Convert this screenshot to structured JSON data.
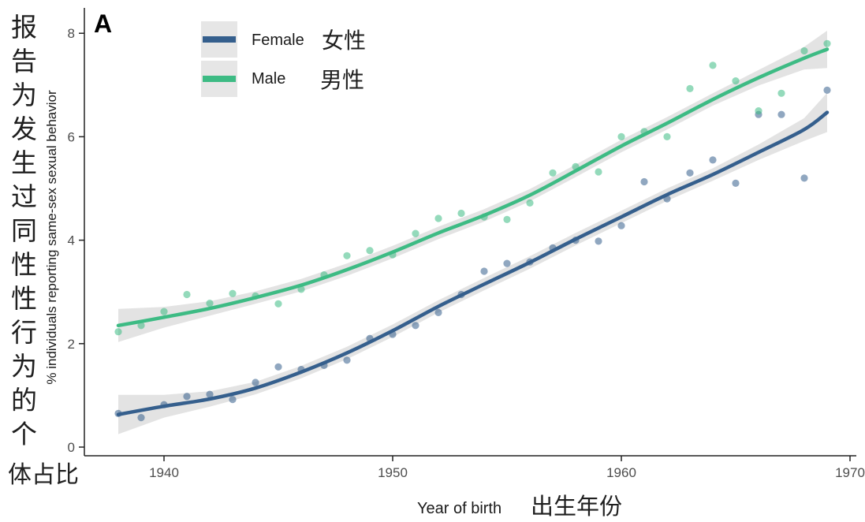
{
  "panel_label": "A",
  "side_label_cn": [
    "报",
    "告",
    "为",
    "发",
    "生",
    "过",
    "同",
    "性",
    "性",
    "行",
    "为",
    "的",
    "个",
    "体占比"
  ],
  "chart_data": {
    "type": "scatter",
    "xlabel": "Year of birth",
    "xlabel_cn": "出生年份",
    "ylabel": "% individuals reporting same-sex sexual behavior",
    "xlim": [
      1937.5,
      1970
    ],
    "ylim": [
      -0.1,
      8.4
    ],
    "x_ticks": [
      1940,
      1950,
      1960,
      1970
    ],
    "y_ticks": [
      0,
      2,
      4,
      6,
      8
    ],
    "grid": false,
    "legend_position": "top-left",
    "series": [
      {
        "name": "Female",
        "name_cn": "女性",
        "color": "#355f8d",
        "points": [
          [
            1938,
            0.65
          ],
          [
            1939,
            0.57
          ],
          [
            1940,
            0.82
          ],
          [
            1941,
            0.98
          ],
          [
            1942,
            1.02
          ],
          [
            1943,
            0.92
          ],
          [
            1944,
            1.25
          ],
          [
            1945,
            1.55
          ],
          [
            1946,
            1.5
          ],
          [
            1947,
            1.58
          ],
          [
            1948,
            1.68
          ],
          [
            1949,
            2.1
          ],
          [
            1950,
            2.18
          ],
          [
            1951,
            2.35
          ],
          [
            1952,
            2.6
          ],
          [
            1953,
            2.95
          ],
          [
            1954,
            3.4
          ],
          [
            1955,
            3.55
          ],
          [
            1956,
            3.58
          ],
          [
            1957,
            3.85
          ],
          [
            1958,
            4.0
          ],
          [
            1959,
            3.98
          ],
          [
            1960,
            4.28
          ],
          [
            1961,
            5.13
          ],
          [
            1962,
            4.8
          ],
          [
            1963,
            5.3
          ],
          [
            1964,
            5.55
          ],
          [
            1965,
            5.1
          ],
          [
            1966,
            6.43
          ],
          [
            1967,
            6.43
          ],
          [
            1968,
            5.2
          ],
          [
            1969,
            6.9
          ]
        ],
        "trend": [
          [
            1938,
            0.63
          ],
          [
            1940,
            0.79
          ],
          [
            1942,
            0.93
          ],
          [
            1944,
            1.14
          ],
          [
            1946,
            1.45
          ],
          [
            1948,
            1.82
          ],
          [
            1950,
            2.25
          ],
          [
            1952,
            2.72
          ],
          [
            1954,
            3.15
          ],
          [
            1956,
            3.57
          ],
          [
            1958,
            4.02
          ],
          [
            1960,
            4.45
          ],
          [
            1962,
            4.88
          ],
          [
            1964,
            5.27
          ],
          [
            1966,
            5.7
          ],
          [
            1968,
            6.14
          ],
          [
            1969,
            6.47
          ]
        ],
        "band_halfwidth": [
          0.38,
          0.22,
          0.15,
          0.12,
          0.12,
          0.12,
          0.12,
          0.12,
          0.12,
          0.12,
          0.12,
          0.12,
          0.12,
          0.12,
          0.15,
          0.22,
          0.38
        ]
      },
      {
        "name": "Male",
        "name_cn": "男性",
        "color": "#3dbb84",
        "points": [
          [
            1938,
            2.23
          ],
          [
            1939,
            2.35
          ],
          [
            1940,
            2.62
          ],
          [
            1941,
            2.95
          ],
          [
            1942,
            2.78
          ],
          [
            1943,
            2.97
          ],
          [
            1944,
            2.92
          ],
          [
            1945,
            2.77
          ],
          [
            1946,
            3.05
          ],
          [
            1947,
            3.33
          ],
          [
            1948,
            3.7
          ],
          [
            1949,
            3.8
          ],
          [
            1950,
            3.72
          ],
          [
            1951,
            4.13
          ],
          [
            1952,
            4.42
          ],
          [
            1953,
            4.52
          ],
          [
            1954,
            4.45
          ],
          [
            1955,
            4.4
          ],
          [
            1956,
            4.72
          ],
          [
            1957,
            5.3
          ],
          [
            1958,
            5.42
          ],
          [
            1959,
            5.32
          ],
          [
            1960,
            6.0
          ],
          [
            1961,
            6.1
          ],
          [
            1962,
            6.0
          ],
          [
            1963,
            6.93
          ],
          [
            1964,
            7.38
          ],
          [
            1965,
            7.08
          ],
          [
            1966,
            6.5
          ],
          [
            1967,
            6.84
          ],
          [
            1968,
            7.66
          ],
          [
            1969,
            7.8
          ]
        ],
        "trend": [
          [
            1938,
            2.35
          ],
          [
            1940,
            2.51
          ],
          [
            1942,
            2.68
          ],
          [
            1944,
            2.89
          ],
          [
            1946,
            3.13
          ],
          [
            1948,
            3.43
          ],
          [
            1950,
            3.77
          ],
          [
            1952,
            4.14
          ],
          [
            1954,
            4.48
          ],
          [
            1956,
            4.87
          ],
          [
            1958,
            5.34
          ],
          [
            1960,
            5.82
          ],
          [
            1962,
            6.26
          ],
          [
            1964,
            6.72
          ],
          [
            1966,
            7.14
          ],
          [
            1968,
            7.52
          ],
          [
            1969,
            7.69
          ]
        ],
        "band_halfwidth": [
          0.32,
          0.2,
          0.14,
          0.12,
          0.12,
          0.12,
          0.12,
          0.12,
          0.12,
          0.12,
          0.12,
          0.12,
          0.12,
          0.12,
          0.15,
          0.22,
          0.36
        ]
      }
    ]
  }
}
